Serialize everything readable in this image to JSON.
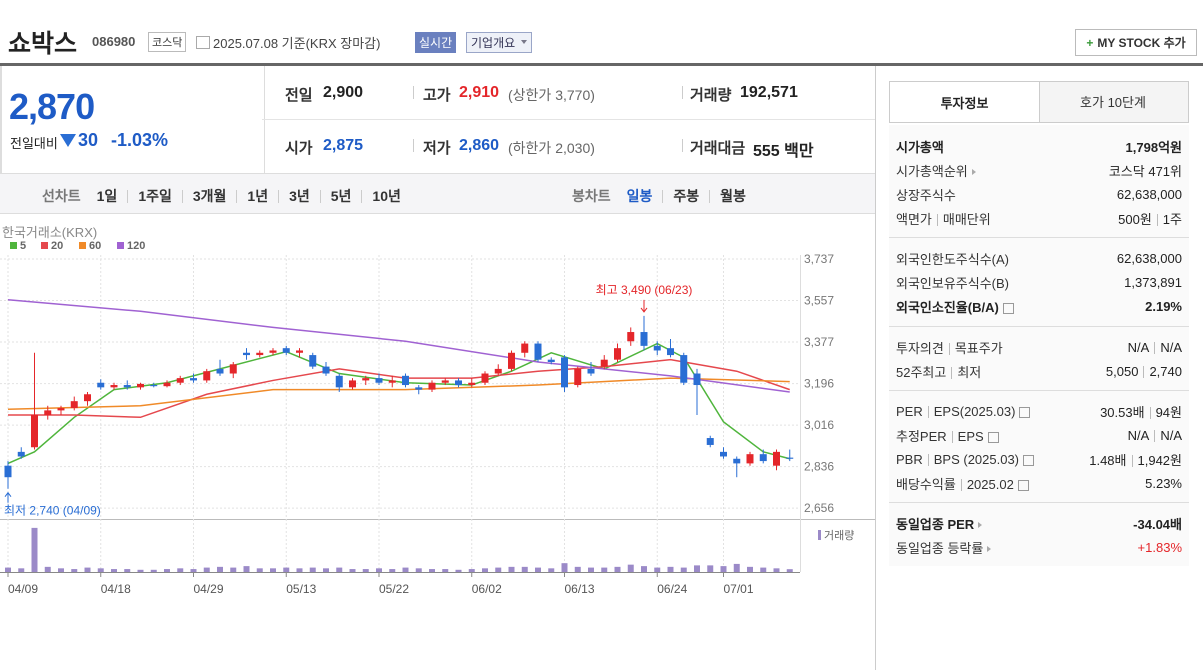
{
  "header": {
    "name": "쇼박스",
    "code": "086980",
    "market": "코스닥",
    "date": "2025.07.08 기준(KRX 장마감)",
    "realtime": "실시간",
    "company_info": "기업개요",
    "my_stock": "MY STOCK 추가"
  },
  "quote": {
    "price": "2,870",
    "change_label": "전일대비",
    "change": "30",
    "change_rate": "-1.03%"
  },
  "summary": {
    "prev": {
      "label": "전일",
      "value": "2,900"
    },
    "high": {
      "label": "고가",
      "value": "2,910",
      "limit": "(상한가 3,770)"
    },
    "volume": {
      "label": "거래량",
      "value": "192,571"
    },
    "open": {
      "label": "시가",
      "value": "2,875"
    },
    "low": {
      "label": "저가",
      "value": "2,860",
      "limit": "(하한가 2,030)"
    },
    "amount": {
      "label": "거래대금",
      "value": "555 백만"
    }
  },
  "tabs": {
    "line_chart": {
      "label": "선차트",
      "periods": [
        "1일",
        "1주일",
        "3개월",
        "1년",
        "3년",
        "5년",
        "10년"
      ]
    },
    "candle_chart": {
      "label": "봉차트",
      "periods": [
        "일봉",
        "주봉",
        "월봉"
      ],
      "active": 0
    }
  },
  "chart_data": {
    "type": "candlestick",
    "source": "한국거래소(KRX)",
    "categories": [
      "04/09",
      null,
      null,
      null,
      null,
      null,
      null,
      "04/18",
      null,
      null,
      null,
      null,
      null,
      null,
      "04/29",
      null,
      null,
      null,
      null,
      null,
      null,
      "05/13",
      null,
      null,
      null,
      null,
      null,
      null,
      "05/22",
      null,
      null,
      null,
      null,
      null,
      null,
      "06/02",
      null,
      null,
      null,
      null,
      null,
      null,
      "06/13",
      null,
      null,
      null,
      null,
      null,
      null,
      "06/24",
      null,
      null,
      null,
      null,
      "07/01",
      null,
      null,
      null,
      null,
      null
    ],
    "open": [
      2840,
      2900,
      2920,
      3060,
      3080,
      3090,
      3120,
      3200,
      3180,
      3190,
      3180,
      3190,
      3185,
      3200,
      3220,
      3210,
      3260,
      3240,
      3330,
      3320,
      3330,
      3350,
      3330,
      3320,
      3270,
      3230,
      3180,
      3210,
      3220,
      3200,
      3230,
      3180,
      3170,
      3200,
      3210,
      3190,
      3200,
      3240,
      3260,
      3330,
      3370,
      3300,
      3310,
      3190,
      3260,
      3270,
      3300,
      3380,
      3420,
      3360,
      3350,
      3320,
      3240,
      2960,
      2900,
      2870,
      2850,
      2890,
      2840,
      2875
    ],
    "high": [
      2860,
      2920,
      3330,
      3100,
      3100,
      3140,
      3160,
      3215,
      3200,
      3210,
      3200,
      3200,
      3210,
      3230,
      3240,
      3260,
      3300,
      3290,
      3350,
      3340,
      3350,
      3360,
      3350,
      3330,
      3290,
      3240,
      3220,
      3230,
      3240,
      3230,
      3240,
      3190,
      3210,
      3220,
      3220,
      3220,
      3250,
      3280,
      3340,
      3380,
      3380,
      3310,
      3320,
      3270,
      3290,
      3320,
      3370,
      3440,
      3490,
      3380,
      3390,
      3330,
      3260,
      2970,
      2920,
      2880,
      2900,
      2910,
      2910,
      2910
    ],
    "low": [
      2740,
      2870,
      2910,
      3040,
      3060,
      3080,
      3100,
      3170,
      3170,
      3170,
      3170,
      3180,
      3180,
      3190,
      3200,
      3200,
      3230,
      3220,
      3300,
      3310,
      3320,
      3320,
      3310,
      3260,
      3230,
      3160,
      3170,
      3190,
      3190,
      3180,
      3180,
      3150,
      3160,
      3190,
      3180,
      3180,
      3190,
      3230,
      3250,
      3310,
      3290,
      3280,
      3160,
      3180,
      3230,
      3260,
      3290,
      3360,
      3340,
      3320,
      3310,
      3190,
      3060,
      2920,
      2870,
      2790,
      2840,
      2850,
      2820,
      2860
    ],
    "close": [
      2790,
      2880,
      3060,
      3080,
      3090,
      3120,
      3150,
      3180,
      3190,
      3180,
      3195,
      3185,
      3200,
      3220,
      3210,
      3250,
      3240,
      3280,
      3320,
      3330,
      3340,
      3330,
      3340,
      3270,
      3240,
      3180,
      3210,
      3220,
      3200,
      3210,
      3190,
      3170,
      3200,
      3210,
      3190,
      3200,
      3240,
      3260,
      3330,
      3370,
      3300,
      3290,
      3180,
      3260,
      3240,
      3300,
      3350,
      3420,
      3360,
      3340,
      3320,
      3200,
      3190,
      2930,
      2880,
      2850,
      2890,
      2860,
      2900,
      2870
    ],
    "moving_averages": [
      {
        "name": "5",
        "color": "#4fb53c",
        "x": [
          0,
          2,
          5,
          8,
          12,
          16,
          21,
          25,
          30,
          35,
          38,
          41,
          45,
          49,
          51,
          54,
          57,
          59
        ],
        "values": [
          2850,
          2900,
          3050,
          3170,
          3200,
          3260,
          3335,
          3240,
          3200,
          3190,
          3250,
          3330,
          3260,
          3370,
          3310,
          3030,
          2900,
          2870
        ]
      },
      {
        "name": "20",
        "color": "#e5484d",
        "x": [
          0,
          5,
          10,
          15,
          20,
          25,
          30,
          35,
          40,
          45,
          50,
          55,
          59
        ],
        "values": [
          3060,
          3060,
          3050,
          3150,
          3210,
          3260,
          3220,
          3220,
          3250,
          3270,
          3300,
          3250,
          3170
        ]
      },
      {
        "name": "60",
        "color": "#f08a28",
        "x": [
          0,
          10,
          20,
          30,
          40,
          50,
          59
        ],
        "values": [
          3085,
          3100,
          3170,
          3170,
          3190,
          3220,
          3205
        ]
      },
      {
        "name": "120",
        "color": "#a062d2",
        "x": [
          0,
          10,
          20,
          30,
          40,
          50,
          59
        ],
        "values": [
          3560,
          3510,
          3440,
          3380,
          3290,
          3230,
          3160
        ]
      }
    ],
    "up_color": "#e4262a",
    "down_color": "#2a6ed4",
    "ylim": [
      2613,
      3776
    ],
    "yticks": [
      {
        "value": 3737,
        "label": "3,737"
      },
      {
        "value": 3557,
        "label": "3,557"
      },
      {
        "value": 3377,
        "label": "3,377"
      },
      {
        "value": 3196,
        "label": "3,196"
      },
      {
        "value": 3016,
        "label": "3,016"
      },
      {
        "value": 2836,
        "label": "2,836"
      },
      {
        "value": 2656,
        "label": "2,656"
      }
    ],
    "grid": true,
    "annotations": {
      "high": "최고 3,490 (06/23)",
      "low": "최저 2,740 (04/09)"
    },
    "volume": {
      "name": "거래량",
      "color": "#9b8ac8",
      "ylim": [
        0,
        3400000
      ],
      "values": [
        300000,
        250000,
        3000000,
        350000,
        250000,
        200000,
        300000,
        250000,
        200000,
        200000,
        150000,
        150000,
        200000,
        250000,
        200000,
        300000,
        350000,
        300000,
        400000,
        250000,
        250000,
        300000,
        250000,
        300000,
        250000,
        300000,
        200000,
        200000,
        250000,
        200000,
        300000,
        250000,
        200000,
        200000,
        150000,
        200000,
        250000,
        300000,
        350000,
        350000,
        300000,
        250000,
        600000,
        350000,
        300000,
        300000,
        350000,
        500000,
        400000,
        300000,
        350000,
        300000,
        450000,
        450000,
        400000,
        550000,
        350000,
        300000,
        250000,
        192571
      ]
    }
  },
  "info": {
    "tabs": [
      "투자정보",
      "호가 10단계"
    ],
    "groups": [
      [
        {
          "label": [
            "시가총액"
          ],
          "value": [
            "1,798억원"
          ],
          "bold": true
        },
        {
          "label": [
            "시가총액순위"
          ],
          "value": [
            "코스닥 471위"
          ],
          "arrow": true
        },
        {
          "label": [
            "상장주식수"
          ],
          "value": [
            "62,638,000"
          ]
        },
        {
          "label": [
            "액면가",
            "매매단위"
          ],
          "value": [
            "500원",
            "1주"
          ]
        }
      ],
      [
        {
          "label": [
            "외국인한도주식수(A)"
          ],
          "value": [
            "62,638,000"
          ]
        },
        {
          "label": [
            "외국인보유주식수(B)"
          ],
          "value": [
            "1,373,891"
          ]
        },
        {
          "label": [
            "외국인소진율(B/A)"
          ],
          "value": [
            "2.19%"
          ],
          "bold": true,
          "help": true
        }
      ],
      [
        {
          "label": [
            "투자의견",
            "목표주가"
          ],
          "value": [
            "N/A",
            "N/A"
          ]
        },
        {
          "label": [
            "52주최고",
            "최저"
          ],
          "value": [
            "5,050",
            "2,740"
          ]
        }
      ],
      [
        {
          "label": [
            "PER",
            "EPS(2025.03)"
          ],
          "value": [
            "30.53배",
            "94원"
          ],
          "help": true
        },
        {
          "label": [
            "추정PER",
            "EPS"
          ],
          "value": [
            "N/A",
            "N/A"
          ],
          "help": true
        },
        {
          "label": [
            "PBR",
            "BPS (2025.03)"
          ],
          "value": [
            "1.48배",
            "1,942원"
          ],
          "help": true
        },
        {
          "label": [
            "배당수익률",
            "2025.02"
          ],
          "value": [
            "5.23%"
          ],
          "help": true
        }
      ],
      [
        {
          "label": [
            "동일업종 PER"
          ],
          "value": [
            "-34.04배"
          ],
          "bold": true,
          "arrow": true
        },
        {
          "label": [
            "동일업종 등락률"
          ],
          "value": [
            "+1.83%"
          ],
          "arrow": true,
          "color": "#e4262a"
        }
      ]
    ]
  }
}
